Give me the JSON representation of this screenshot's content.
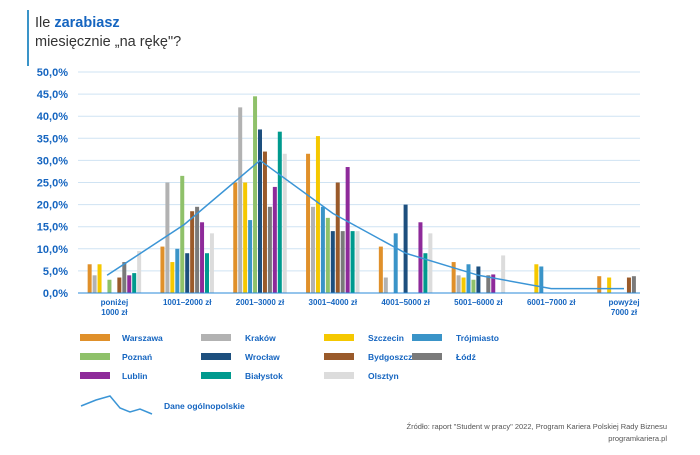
{
  "header": {
    "title_prefix": "Ile ",
    "title_bold": "zarabiasz",
    "subtitle": "miesięcznie „na rękę\"?"
  },
  "source": {
    "line1": "Źródło: raport \"Student w pracy\" 2022, Program Kariera Polskiej Rady Biznesu",
    "line2": "programkariera.pl"
  },
  "colors": {
    "accent": "#1565c0",
    "grid": "#cfe3f3",
    "axis": "#2a8ad8",
    "line": "#3b95d6"
  },
  "chart_data": {
    "type": "bar",
    "title": "",
    "xlabel": "",
    "ylabel": "",
    "ylim": [
      0,
      50
    ],
    "ytick_labels": [
      "0,0%",
      "5,0%",
      "10,0%",
      "15,0%",
      "20,0%",
      "25,0%",
      "30,0%",
      "35,0%",
      "40,0%",
      "45,0%",
      "50,0%"
    ],
    "grid": true,
    "legend_position": "bottom-left",
    "categories": [
      [
        "poniżej",
        "1000 zł"
      ],
      [
        "1001–2000 zł"
      ],
      [
        "2001–3000 zł"
      ],
      [
        "3001–4000 zł"
      ],
      [
        "4001–5000 zł"
      ],
      [
        "5001–6000 zł"
      ],
      [
        "6001–7000 zł"
      ],
      [
        "powyżej",
        "7000 zł"
      ]
    ],
    "series": [
      {
        "name": "Warszawa",
        "color": "#e0902a",
        "values": [
          6.5,
          10.5,
          25.0,
          31.5,
          10.5,
          7.0,
          0,
          3.8
        ]
      },
      {
        "name": "Kraków",
        "color": "#b2b2b2",
        "values": [
          4.0,
          25.0,
          42.0,
          19.5,
          3.5,
          4.0,
          0,
          0
        ]
      },
      {
        "name": "Szczecin",
        "color": "#f5c800",
        "values": [
          6.5,
          7.0,
          25.0,
          35.5,
          0,
          3.5,
          6.5,
          3.5
        ]
      },
      {
        "name": "Trójmiasto",
        "color": "#3a94c8",
        "values": [
          0,
          10.0,
          16.5,
          19.5,
          13.5,
          6.5,
          6.0,
          0
        ]
      },
      {
        "name": "Poznań",
        "color": "#8fc16a",
        "values": [
          3.0,
          26.5,
          44.5,
          17.0,
          0,
          3.0,
          0,
          0
        ]
      },
      {
        "name": "Wrocław",
        "color": "#1d4f7e",
        "values": [
          0,
          9.0,
          37.0,
          14.0,
          20.0,
          6.0,
          0,
          0
        ]
      },
      {
        "name": "Bydgoszcz/Toruń",
        "color": "#9a5a2a",
        "values": [
          3.5,
          18.5,
          32.0,
          25.0,
          0,
          0,
          0,
          3.5
        ]
      },
      {
        "name": "Łódź",
        "color": "#7a7a7a",
        "values": [
          7.0,
          19.5,
          19.5,
          14.0,
          0,
          4.0,
          0,
          3.8
        ]
      },
      {
        "name": "Lublin",
        "color": "#8e2a9a",
        "values": [
          4.0,
          16.0,
          24.0,
          28.5,
          16.0,
          4.2,
          0,
          0
        ]
      },
      {
        "name": "Białystok",
        "color": "#009a8e",
        "values": [
          4.5,
          9.0,
          36.5,
          14.0,
          9.0,
          0,
          0,
          0
        ]
      },
      {
        "name": "Olsztyn",
        "color": "#dcdcdc",
        "values": [
          9.5,
          13.5,
          31.5,
          14.0,
          13.5,
          8.5,
          0,
          0
        ]
      }
    ],
    "overall_line": {
      "name": "Dane ogólnopolskie",
      "color": "#3b95d6",
      "x": [
        -0.1,
        0.96,
        2.0,
        3.0,
        4.0,
        5.0,
        6.0,
        7.0
      ],
      "values": [
        4.0,
        15.5,
        30.0,
        18.0,
        9.0,
        4.0,
        1.0,
        1.0
      ]
    }
  }
}
